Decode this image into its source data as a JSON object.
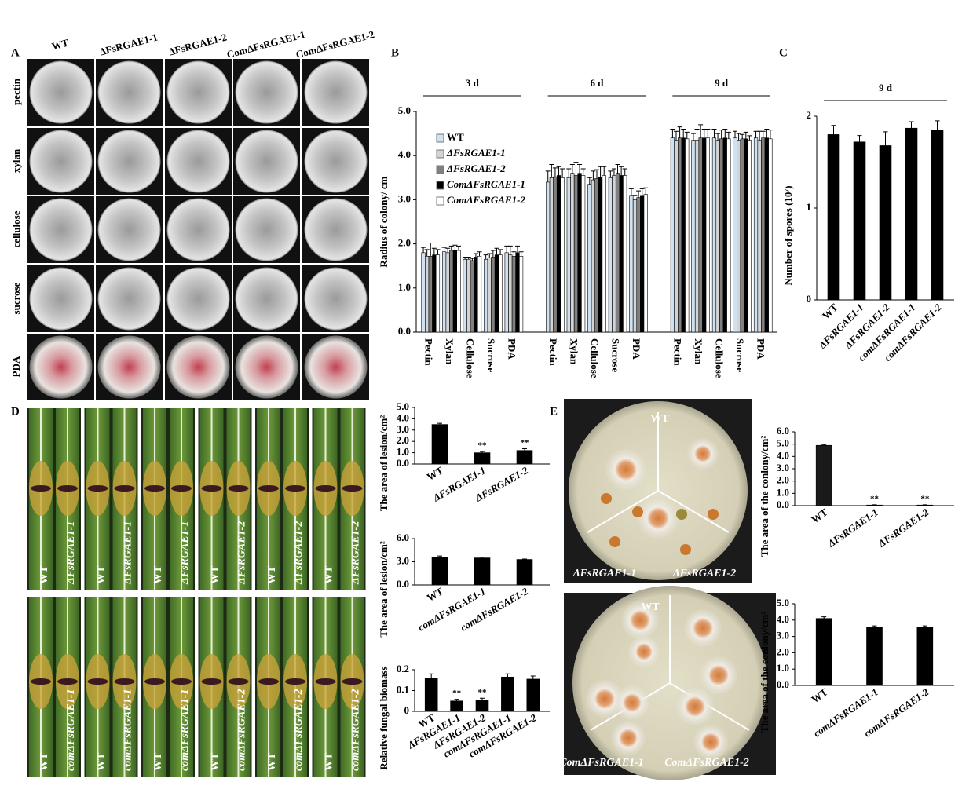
{
  "panel_letters": [
    "A",
    "B",
    "C",
    "D",
    "E"
  ],
  "panel_a": {
    "columns": [
      "WT",
      "ΔFsRGAE1-1",
      "ΔFsRGAE1-2",
      "ComΔFsRGAE1-1",
      "ComΔFsRGAE1-2"
    ],
    "rows": [
      "pectin",
      "xylan",
      "cellulose",
      "sucrose",
      "PDA"
    ]
  },
  "panel_d": {
    "top_labels": [
      "WT",
      "ΔFsRGAE1-1",
      "WT",
      "ΔFsRGAE1-1",
      "WT",
      "ΔFsRGAE1-1",
      "WT",
      "ΔFsRGAE1-2",
      "WT",
      "ΔFsRGAE1-2",
      "WT",
      "ΔFsRGAE1-2"
    ],
    "bottom_labels": [
      "WT",
      "comΔFsRGAE1-1",
      "WT",
      "comΔFsRGAE1-1",
      "WT",
      "comΔFsRGAE1-1",
      "WT",
      "comΔFsRGAE1-2",
      "WT",
      "comΔFsRGAE1-2",
      "WT",
      "comΔFsRGAE1-2"
    ]
  },
  "panel_e": {
    "top_labels": [
      "WT",
      "ΔFsRGAE1-1",
      "ΔFsRGAE1-2"
    ],
    "bottom_labels": [
      "WT",
      "ComΔFsRGAE1-1",
      "ComΔFsRGAE1-2"
    ]
  },
  "chart_data": [
    {
      "type": "bar",
      "y_label": "Radius of colony/ cm",
      "categories": [
        "Pectin",
        "Xylan",
        "Cellulose",
        "Sucrose",
        "PDA",
        "Pectin",
        "Xylan",
        "Cellulose",
        "Sucrose",
        "PDA",
        "Pectin",
        "Xylan",
        "Cellulose",
        "Sucrose",
        "PDA"
      ],
      "category_groups": [
        "3 d",
        "6 d",
        "9 d"
      ],
      "ylim": [
        0,
        5
      ],
      "yticks": [
        {
          "value": 0,
          "label": "0.0"
        },
        {
          "value": 1,
          "label": "1.0"
        },
        {
          "value": 2,
          "label": "2.0"
        },
        {
          "value": 3,
          "label": "3.0"
        },
        {
          "value": 4,
          "label": "4.0"
        },
        {
          "value": 5,
          "label": "5.0"
        }
      ],
      "legend": "upper left",
      "series": [
        {
          "name": "WT",
          "color": "#cfe2f3",
          "values": [
            1.8,
            1.82,
            1.65,
            1.65,
            1.8,
            3.4,
            3.5,
            3.35,
            3.5,
            3.1,
            4.4,
            4.35,
            4.4,
            4.4,
            4.4
          ],
          "errors": [
            0.12,
            0.1,
            0.05,
            0.1,
            0.15,
            0.25,
            0.2,
            0.15,
            0.15,
            0.15,
            0.2,
            0.15,
            0.2,
            0.15,
            0.15
          ]
        },
        {
          "name": "ΔFsRGAE1-1",
          "color": "#d4d4d4",
          "values": [
            1.72,
            1.8,
            1.65,
            1.68,
            1.75,
            3.5,
            3.6,
            3.45,
            3.55,
            3.0,
            4.35,
            4.35,
            4.35,
            4.35,
            4.35
          ],
          "errors": [
            0.15,
            0.1,
            0.05,
            0.1,
            0.2,
            0.3,
            0.2,
            0.2,
            0.15,
            0.1,
            0.2,
            0.25,
            0.15,
            0.15,
            0.2
          ]
        },
        {
          "name": "ΔFsRGAE1-2",
          "color": "#808080",
          "values": [
            1.72,
            1.85,
            1.62,
            1.7,
            1.72,
            3.52,
            3.55,
            3.48,
            3.6,
            3.05,
            4.4,
            4.4,
            4.38,
            4.38,
            4.4
          ],
          "errors": [
            0.3,
            0.1,
            0.05,
            0.15,
            0.1,
            0.2,
            0.3,
            0.2,
            0.2,
            0.15,
            0.25,
            0.3,
            0.2,
            0.1,
            0.15
          ]
        },
        {
          "name": "ComΔFsRGAE1-1",
          "color": "#000000",
          "values": [
            1.75,
            1.85,
            1.7,
            1.75,
            1.8,
            3.55,
            3.6,
            3.5,
            3.55,
            3.1,
            4.4,
            4.4,
            4.4,
            4.38,
            4.4
          ],
          "errors": [
            0.15,
            0.12,
            0.08,
            0.15,
            0.15,
            0.2,
            0.2,
            0.25,
            0.2,
            0.15,
            0.2,
            0.2,
            0.2,
            0.15,
            0.2
          ]
        },
        {
          "name": "ComΔFsRGAE1-2",
          "color": "#ffffff",
          "values": [
            1.75,
            1.85,
            1.72,
            1.75,
            1.72,
            3.5,
            3.55,
            3.55,
            3.55,
            3.12,
            4.38,
            4.4,
            4.38,
            4.35,
            4.38
          ],
          "errors": [
            0.12,
            0.1,
            0.1,
            0.12,
            0.1,
            0.2,
            0.15,
            0.2,
            0.15,
            0.15,
            0.15,
            0.2,
            0.15,
            0.1,
            0.2
          ]
        }
      ]
    },
    {
      "type": "bar",
      "y_label": "Number of spores (10⁷)",
      "category_groups": [
        "9 d"
      ],
      "categories": [
        "WT",
        "ΔFsRGAE1-1",
        "ΔFsRGAE1-2",
        "comΔFsRGAE1-1",
        "comΔFsRGAE1-2"
      ],
      "values": [
        1.8,
        1.72,
        1.68,
        1.87,
        1.85
      ],
      "errors": [
        0.1,
        0.07,
        0.15,
        0.07,
        0.1
      ],
      "color": "#000000",
      "ylim": [
        0,
        2
      ],
      "yticks": [
        0,
        1,
        2
      ]
    },
    {
      "type": "bar",
      "y_label": "The area of lesion/cm²",
      "categories": [
        "WT",
        "ΔFsRGAE1-1",
        "ΔFsRGAE1-2"
      ],
      "values": [
        3.5,
        1.0,
        1.2
      ],
      "errors": [
        0.1,
        0.1,
        0.15
      ],
      "significance": [
        null,
        "**",
        "**"
      ],
      "color": "#000000",
      "ylim": [
        0,
        5
      ],
      "yticks": [
        {
          "value": 0,
          "label": "0.0"
        },
        {
          "value": 1,
          "label": "1.0"
        },
        {
          "value": 2,
          "label": "2.0"
        },
        {
          "value": 3,
          "label": "3.0"
        },
        {
          "value": 4,
          "label": "4.0"
        },
        {
          "value": 5,
          "label": "5.0"
        }
      ]
    },
    {
      "type": "bar",
      "y_label": "The area of lesion/cm²",
      "categories": [
        "WT",
        "comΔFsRGAE1-1",
        "comΔFsRGAE1-2"
      ],
      "values": [
        3.6,
        3.5,
        3.3
      ],
      "errors": [
        0.15,
        0.1,
        0.05
      ],
      "color": "#000000",
      "ylim": [
        0,
        6
      ],
      "yticks": [
        {
          "value": 0,
          "label": "0.0"
        },
        {
          "value": 3,
          "label": "3.0"
        },
        {
          "value": 6,
          "label": "6.0"
        }
      ]
    },
    {
      "type": "bar",
      "y_label": "Relative fungal biomass",
      "categories": [
        "WT",
        "ΔFsRGAE1-1",
        "ΔFsRGAE1-2",
        "comΔFsRGAE1-1",
        "comΔFsRGAE1-2"
      ],
      "values": [
        0.16,
        0.05,
        0.055,
        0.165,
        0.155
      ],
      "errors": [
        0.02,
        0.008,
        0.008,
        0.015,
        0.015
      ],
      "significance": [
        null,
        "**",
        "**",
        null,
        null
      ],
      "color": "#000000",
      "ylim": [
        0,
        0.2
      ],
      "yticks": [
        0,
        0.1,
        0.2
      ]
    },
    {
      "type": "bar",
      "y_label": "The area of the conlony/cm²",
      "categories": [
        "WT",
        "ΔFsRGAE1-1",
        "ΔFsRGAE1-2"
      ],
      "values": [
        4.9,
        0.05,
        0.05
      ],
      "errors": [
        0.06,
        0.02,
        0.02
      ],
      "significance": [
        null,
        "**",
        "**"
      ],
      "color": "#1a1a1a",
      "ylim": [
        0,
        6
      ],
      "yticks": [
        {
          "value": 0,
          "label": "0.0"
        },
        {
          "value": 1,
          "label": "1.0"
        },
        {
          "value": 2,
          "label": "2.0"
        },
        {
          "value": 3,
          "label": "3.0"
        },
        {
          "value": 4,
          "label": "4.0"
        },
        {
          "value": 5,
          "label": "5.0"
        },
        {
          "value": 6,
          "label": "6.0"
        }
      ]
    },
    {
      "type": "bar",
      "y_label": "The area of the conlony/cm²",
      "categories": [
        "WT",
        "comΔFsRGAE1-1",
        "comΔFsRGAE1-2"
      ],
      "values": [
        4.1,
        3.55,
        3.55
      ],
      "errors": [
        0.1,
        0.1,
        0.1
      ],
      "color": "#000000",
      "ylim": [
        0,
        5
      ],
      "yticks": [
        {
          "value": 0,
          "label": "0.0"
        },
        {
          "value": 1,
          "label": "1.0"
        },
        {
          "value": 2,
          "label": "2.0"
        },
        {
          "value": 3,
          "label": "3.0"
        },
        {
          "value": 4,
          "label": "4.0"
        },
        {
          "value": 5,
          "label": "5.0"
        }
      ]
    }
  ]
}
